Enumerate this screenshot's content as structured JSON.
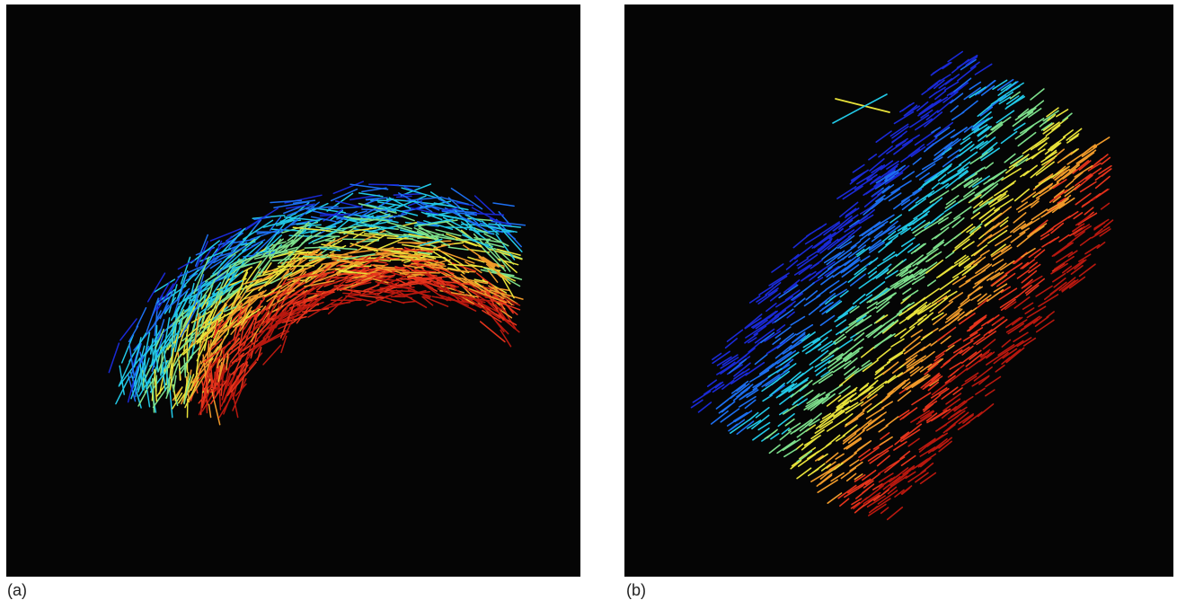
{
  "figure": {
    "panels": [
      {
        "id": "a",
        "label": "(a)"
      },
      {
        "id": "b",
        "label": "(b)"
      }
    ],
    "background_color": "#050505",
    "colormap": [
      "#1a2ad6",
      "#1d6ff0",
      "#22c8e6",
      "#7de08c",
      "#e8e23a",
      "#f09a2a",
      "#e5341c",
      "#b8180f"
    ]
  }
}
